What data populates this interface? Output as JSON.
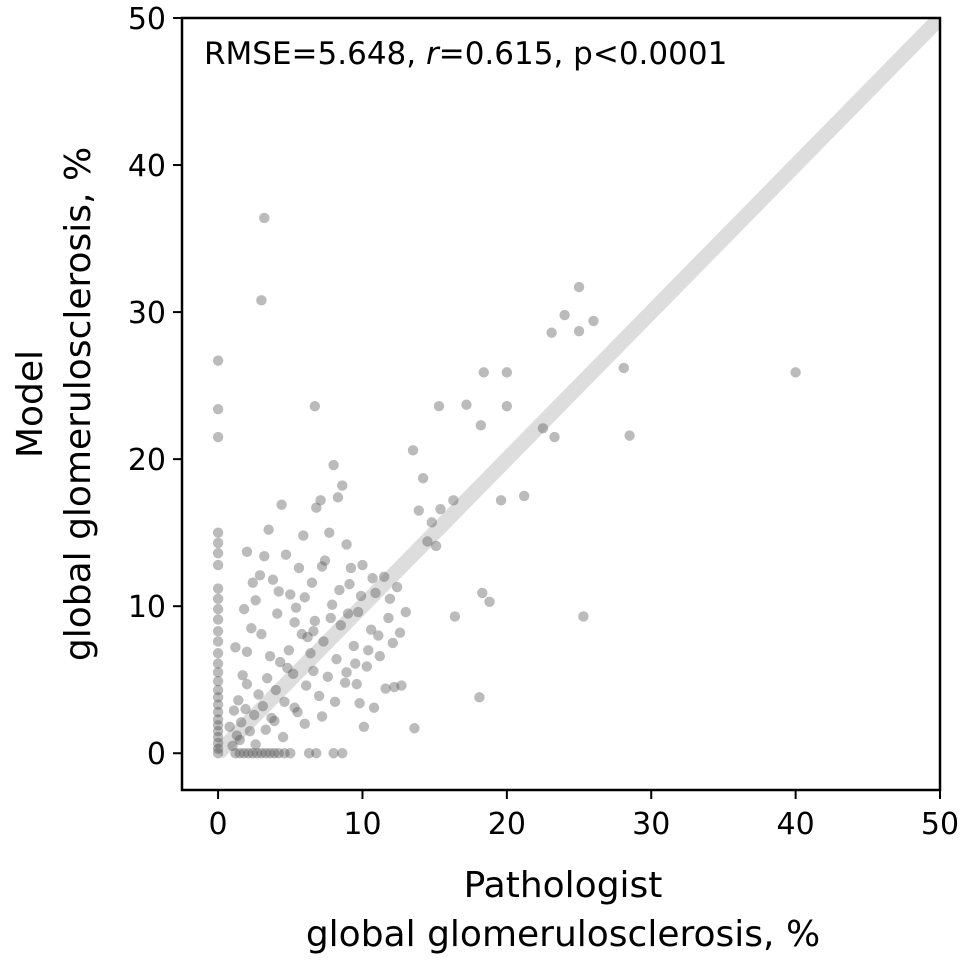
{
  "chart_data": {
    "type": "scatter",
    "annotation": {
      "prefix": "RMSE=5.648, ",
      "r_symbol": "r",
      "suffix": "=0.615, p<0.0001"
    },
    "xlabel": {
      "line1": "Pathologist",
      "line2": "global glomerulosclerosis, %"
    },
    "ylabel": {
      "line1": "Model",
      "line2": "global glomerulosclerosis, %"
    },
    "xlim": [
      -2.5,
      50
    ],
    "ylim": [
      -2.5,
      50
    ],
    "xticks": [
      0,
      10,
      20,
      30,
      40,
      50
    ],
    "yticks": [
      0,
      10,
      20,
      30,
      40,
      50
    ],
    "tick_labels_x": [
      "0",
      "10",
      "20",
      "30",
      "40",
      "50"
    ],
    "tick_labels_y": [
      "0",
      "10",
      "20",
      "30",
      "40",
      "50"
    ],
    "identity_line": {
      "from": [
        0,
        0
      ],
      "to": [
        50,
        50
      ],
      "color": "#dddddd"
    },
    "point_color": "#555555",
    "point_opacity": 0.4,
    "series": [
      {
        "name": "samples",
        "points": [
          [
            0,
            26.7
          ],
          [
            0,
            23.4
          ],
          [
            0,
            21.5
          ],
          [
            0,
            15.0
          ],
          [
            0,
            14.3
          ],
          [
            0,
            13.6
          ],
          [
            0,
            12.8
          ],
          [
            0,
            11.2
          ],
          [
            0,
            10.5
          ],
          [
            0,
            9.8
          ],
          [
            0,
            9.1
          ],
          [
            0,
            8.3
          ],
          [
            0,
            7.6
          ],
          [
            0,
            6.8
          ],
          [
            0,
            6.1
          ],
          [
            0,
            5.5
          ],
          [
            0,
            4.9
          ],
          [
            0,
            4.3
          ],
          [
            0,
            3.8
          ],
          [
            0,
            3.3
          ],
          [
            0,
            2.8
          ],
          [
            0,
            2.3
          ],
          [
            0,
            1.9
          ],
          [
            0,
            1.5
          ],
          [
            0,
            1.1
          ],
          [
            0,
            0.7
          ],
          [
            0,
            0.3
          ],
          [
            0,
            0
          ],
          [
            3.2,
            36.4
          ],
          [
            3.0,
            30.8
          ],
          [
            6.7,
            23.6
          ],
          [
            1.2,
            0
          ],
          [
            1.5,
            0
          ],
          [
            1.8,
            0
          ],
          [
            2.1,
            0
          ],
          [
            2.4,
            0
          ],
          [
            2.7,
            0
          ],
          [
            3.0,
            0
          ],
          [
            3.3,
            0
          ],
          [
            3.6,
            0
          ],
          [
            3.9,
            0
          ],
          [
            4.2,
            0
          ],
          [
            4.6,
            0
          ],
          [
            5.0,
            0
          ],
          [
            6.3,
            0
          ],
          [
            6.8,
            0
          ],
          [
            8.0,
            0
          ],
          [
            8.6,
            0
          ],
          [
            1.0,
            0.5
          ],
          [
            1.3,
            1.2
          ],
          [
            1.6,
            2.1
          ],
          [
            1.9,
            3.0
          ],
          [
            2.2,
            1.5
          ],
          [
            2.5,
            2.6
          ],
          [
            2.8,
            4.0
          ],
          [
            3.1,
            3.2
          ],
          [
            3.4,
            5.1
          ],
          [
            3.7,
            2.4
          ],
          [
            4.0,
            4.3
          ],
          [
            4.3,
            6.2
          ],
          [
            4.6,
            3.5
          ],
          [
            4.9,
            7.0
          ],
          [
            5.2,
            5.4
          ],
          [
            5.5,
            2.8
          ],
          [
            5.8,
            8.1
          ],
          [
            6.1,
            4.6
          ],
          [
            6.4,
            6.8
          ],
          [
            6.7,
            9.0
          ],
          [
            7.0,
            3.9
          ],
          [
            7.3,
            7.6
          ],
          [
            7.6,
            5.2
          ],
          [
            7.9,
            10.1
          ],
          [
            8.2,
            6.4
          ],
          [
            8.5,
            8.7
          ],
          [
            8.8,
            4.8
          ],
          [
            9.1,
            11.5
          ],
          [
            9.4,
            7.3
          ],
          [
            9.7,
            9.6
          ],
          [
            10.0,
            12.8
          ],
          [
            10.3,
            5.9
          ],
          [
            10.6,
            8.4
          ],
          [
            10.9,
            10.9
          ],
          [
            11.2,
            6.6
          ],
          [
            11.5,
            12.0
          ],
          [
            11.8,
            9.2
          ],
          [
            12.1,
            7.5
          ],
          [
            12.4,
            11.3
          ],
          [
            12.7,
            4.6
          ],
          [
            1.4,
            3.6
          ],
          [
            1.7,
            5.3
          ],
          [
            2.0,
            6.9
          ],
          [
            2.3,
            8.5
          ],
          [
            2.6,
            10.4
          ],
          [
            2.9,
            12.1
          ],
          [
            3.2,
            13.4
          ],
          [
            2.0,
            13.7
          ],
          [
            3.5,
            15.2
          ],
          [
            3.8,
            11.8
          ],
          [
            4.1,
            9.5
          ],
          [
            4.4,
            16.9
          ],
          [
            4.7,
            13.5
          ],
          [
            5.0,
            10.8
          ],
          [
            5.3,
            8.9
          ],
          [
            5.6,
            12.6
          ],
          [
            5.9,
            14.8
          ],
          [
            6.2,
            7.9
          ],
          [
            6.5,
            11.6
          ],
          [
            6.8,
            16.7
          ],
          [
            7.1,
            17.2
          ],
          [
            7.4,
            13.1
          ],
          [
            7.7,
            15.0
          ],
          [
            8.0,
            19.6
          ],
          [
            8.3,
            17.4
          ],
          [
            8.6,
            18.2
          ],
          [
            8.9,
            14.2
          ],
          [
            9.2,
            12.6
          ],
          [
            9.5,
            6.1
          ],
          [
            9.8,
            3.4
          ],
          [
            10.1,
            1.8
          ],
          [
            10.8,
            3.1
          ],
          [
            11.6,
            4.4
          ],
          [
            12.2,
            4.5
          ],
          [
            13.0,
            9.6
          ],
          [
            13.6,
            1.7
          ],
          [
            13.5,
            20.6
          ],
          [
            13.9,
            16.5
          ],
          [
            14.2,
            18.7
          ],
          [
            14.5,
            14.4
          ],
          [
            14.8,
            15.7
          ],
          [
            15.1,
            14.1
          ],
          [
            15.4,
            16.6
          ],
          [
            15.3,
            23.6
          ],
          [
            16.3,
            17.2
          ],
          [
            16.4,
            9.3
          ],
          [
            17.2,
            23.7
          ],
          [
            18.1,
            3.8
          ],
          [
            18.3,
            10.9
          ],
          [
            18.4,
            25.9
          ],
          [
            18.2,
            22.3
          ],
          [
            18.8,
            10.3
          ],
          [
            19.6,
            17.2
          ],
          [
            20.0,
            25.9
          ],
          [
            20.0,
            23.6
          ],
          [
            21.2,
            17.5
          ],
          [
            22.5,
            22.1
          ],
          [
            23.1,
            28.6
          ],
          [
            23.3,
            21.5
          ],
          [
            24.0,
            29.8
          ],
          [
            25.0,
            31.7
          ],
          [
            25.0,
            28.7
          ],
          [
            25.3,
            9.3
          ],
          [
            26.0,
            29.4
          ],
          [
            28.1,
            26.2
          ],
          [
            28.5,
            21.6
          ],
          [
            40.0,
            25.9
          ],
          [
            0.8,
            1.8
          ],
          [
            1.1,
            2.9
          ],
          [
            1.5,
            0.9
          ],
          [
            2.0,
            4.7
          ],
          [
            2.6,
            0.6
          ],
          [
            3.3,
            1.6
          ],
          [
            3.9,
            2.2
          ],
          [
            4.5,
            1.1
          ],
          [
            5.3,
            3.1
          ],
          [
            6.0,
            2.0
          ],
          [
            6.6,
            5.6
          ],
          [
            7.2,
            2.5
          ],
          [
            8.1,
            3.5
          ],
          [
            8.9,
            5.5
          ],
          [
            9.6,
            4.7
          ],
          [
            10.4,
            7.0
          ],
          [
            11.1,
            8.0
          ],
          [
            11.9,
            10.5
          ],
          [
            12.6,
            8.2
          ],
          [
            1.2,
            7.2
          ],
          [
            1.8,
            9.8
          ],
          [
            2.4,
            11.6
          ],
          [
            3.0,
            8.1
          ],
          [
            3.6,
            6.6
          ],
          [
            4.2,
            11.0
          ],
          [
            4.8,
            5.8
          ],
          [
            5.4,
            9.9
          ],
          [
            6.0,
            10.6
          ],
          [
            6.6,
            8.3
          ],
          [
            7.2,
            12.7
          ],
          [
            7.8,
            9.2
          ],
          [
            8.4,
            11.1
          ],
          [
            9.0,
            9.5
          ],
          [
            9.9,
            10.7
          ],
          [
            10.7,
            11.9
          ]
        ]
      }
    ]
  }
}
